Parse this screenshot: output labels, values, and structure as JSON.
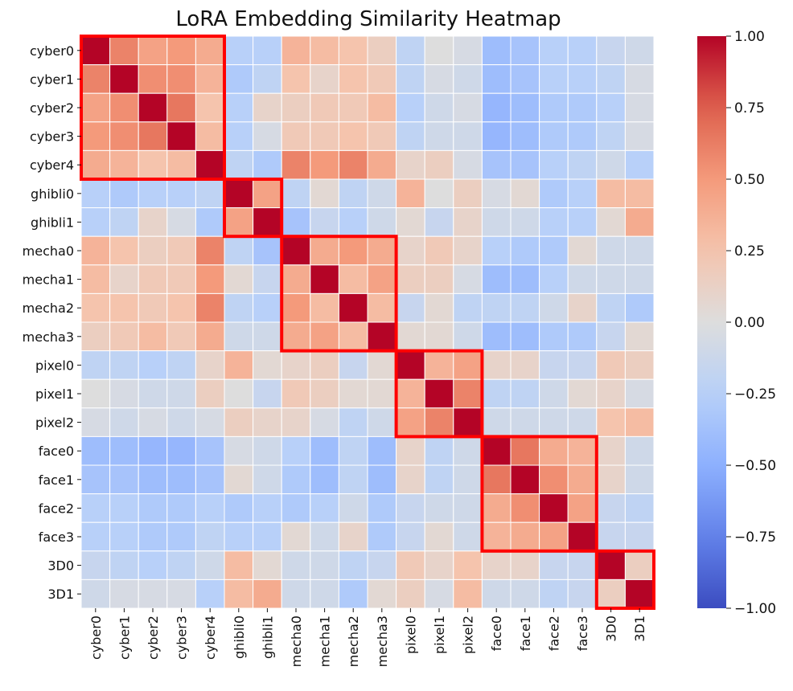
{
  "chart_data": {
    "type": "heatmap",
    "title": "LoRA Embedding Similarity Heatmap",
    "xlabel": "",
    "ylabel": "",
    "categories": [
      "cyber0",
      "cyber1",
      "cyber2",
      "cyber3",
      "cyber4",
      "ghibli0",
      "ghibli1",
      "mecha0",
      "mecha1",
      "mecha2",
      "mecha3",
      "pixel0",
      "pixel1",
      "pixel2",
      "face0",
      "face1",
      "face2",
      "face3",
      "3D0",
      "3D1"
    ],
    "values": [
      [
        1.0,
        0.6,
        0.45,
        0.5,
        0.4,
        -0.25,
        -0.25,
        0.35,
        0.3,
        0.25,
        0.15,
        -0.2,
        0.0,
        -0.05,
        -0.4,
        -0.35,
        -0.25,
        -0.25,
        -0.15,
        -0.1
      ],
      [
        0.6,
        1.0,
        0.55,
        0.55,
        0.35,
        -0.3,
        -0.2,
        0.25,
        0.1,
        0.25,
        0.2,
        -0.2,
        -0.05,
        -0.1,
        -0.4,
        -0.35,
        -0.25,
        -0.25,
        -0.2,
        -0.05
      ],
      [
        0.45,
        0.55,
        1.0,
        0.65,
        0.25,
        -0.25,
        0.1,
        0.15,
        0.2,
        0.2,
        0.3,
        -0.25,
        -0.1,
        -0.05,
        -0.45,
        -0.4,
        -0.3,
        -0.3,
        -0.25,
        -0.05
      ],
      [
        0.5,
        0.55,
        0.65,
        1.0,
        0.3,
        -0.25,
        -0.05,
        0.2,
        0.2,
        0.25,
        0.2,
        -0.2,
        -0.1,
        -0.1,
        -0.45,
        -0.4,
        -0.3,
        -0.3,
        -0.2,
        -0.05
      ],
      [
        0.4,
        0.35,
        0.25,
        0.3,
        1.0,
        -0.2,
        -0.3,
        0.6,
        0.5,
        0.6,
        0.4,
        0.1,
        0.15,
        -0.05,
        -0.35,
        -0.35,
        -0.25,
        -0.2,
        -0.1,
        -0.25
      ],
      [
        -0.25,
        -0.3,
        -0.25,
        -0.25,
        -0.2,
        1.0,
        0.45,
        -0.2,
        0.05,
        -0.2,
        -0.1,
        0.35,
        0.0,
        0.15,
        -0.05,
        0.05,
        -0.3,
        -0.25,
        0.3,
        0.3
      ],
      [
        -0.25,
        -0.2,
        0.1,
        -0.05,
        -0.3,
        0.45,
        1.0,
        -0.35,
        -0.15,
        -0.25,
        -0.1,
        0.05,
        -0.15,
        0.1,
        -0.1,
        -0.1,
        -0.25,
        -0.25,
        0.05,
        0.4
      ],
      [
        0.35,
        0.25,
        0.15,
        0.2,
        0.6,
        -0.2,
        -0.35,
        1.0,
        0.4,
        0.5,
        0.4,
        0.1,
        0.2,
        0.1,
        -0.25,
        -0.3,
        -0.3,
        0.05,
        -0.1,
        -0.1
      ],
      [
        0.3,
        0.1,
        0.2,
        0.2,
        0.5,
        0.05,
        -0.15,
        0.4,
        1.0,
        0.3,
        0.45,
        0.15,
        0.15,
        -0.05,
        -0.4,
        -0.4,
        -0.25,
        -0.1,
        -0.1,
        -0.1
      ],
      [
        0.25,
        0.25,
        0.2,
        0.25,
        0.6,
        -0.2,
        -0.25,
        0.5,
        0.3,
        1.0,
        0.3,
        -0.15,
        0.05,
        -0.2,
        -0.2,
        -0.2,
        -0.1,
        0.1,
        -0.2,
        -0.3
      ],
      [
        0.15,
        0.2,
        0.3,
        0.2,
        0.4,
        -0.1,
        -0.1,
        0.4,
        0.45,
        0.3,
        1.0,
        0.05,
        0.05,
        -0.1,
        -0.4,
        -0.4,
        -0.3,
        -0.3,
        -0.15,
        0.05
      ],
      [
        -0.2,
        -0.2,
        -0.25,
        -0.2,
        0.1,
        0.35,
        0.05,
        0.1,
        0.15,
        -0.15,
        0.05,
        1.0,
        0.35,
        0.45,
        0.1,
        0.1,
        -0.15,
        -0.15,
        0.2,
        0.15
      ],
      [
        0.0,
        -0.05,
        -0.1,
        -0.1,
        0.15,
        0.0,
        -0.15,
        0.2,
        0.15,
        0.05,
        0.05,
        0.35,
        1.0,
        0.6,
        -0.2,
        -0.2,
        -0.1,
        0.05,
        0.1,
        -0.05
      ],
      [
        -0.05,
        -0.1,
        -0.05,
        -0.1,
        -0.05,
        0.15,
        0.1,
        0.1,
        -0.05,
        -0.2,
        -0.1,
        0.45,
        0.6,
        1.0,
        -0.1,
        -0.1,
        -0.1,
        -0.1,
        0.25,
        0.3
      ],
      [
        -0.4,
        -0.4,
        -0.45,
        -0.45,
        -0.35,
        -0.05,
        -0.1,
        -0.25,
        -0.4,
        -0.2,
        -0.4,
        0.1,
        -0.2,
        -0.1,
        1.0,
        0.65,
        0.4,
        0.35,
        0.1,
        -0.1
      ],
      [
        -0.35,
        -0.35,
        -0.4,
        -0.4,
        -0.35,
        0.05,
        -0.1,
        -0.3,
        -0.4,
        -0.2,
        -0.4,
        0.1,
        -0.2,
        -0.1,
        0.65,
        1.0,
        0.55,
        0.4,
        0.1,
        -0.1
      ],
      [
        -0.25,
        -0.25,
        -0.3,
        -0.3,
        -0.25,
        -0.3,
        -0.25,
        -0.3,
        -0.25,
        -0.1,
        -0.3,
        -0.15,
        -0.1,
        -0.1,
        0.4,
        0.55,
        1.0,
        0.45,
        -0.15,
        -0.2
      ],
      [
        -0.25,
        -0.25,
        -0.3,
        -0.3,
        -0.2,
        -0.25,
        -0.25,
        0.05,
        -0.1,
        0.1,
        -0.3,
        -0.15,
        0.05,
        -0.1,
        0.35,
        0.4,
        0.45,
        1.0,
        -0.15,
        -0.15
      ],
      [
        -0.15,
        -0.2,
        -0.25,
        -0.2,
        -0.1,
        0.3,
        0.05,
        -0.1,
        -0.1,
        -0.2,
        -0.15,
        0.2,
        0.1,
        0.25,
        0.1,
        0.1,
        -0.15,
        -0.15,
        1.0,
        0.15
      ],
      [
        -0.1,
        -0.05,
        -0.05,
        -0.05,
        -0.25,
        0.3,
        0.4,
        -0.1,
        -0.1,
        -0.3,
        0.05,
        0.15,
        -0.05,
        0.3,
        -0.1,
        -0.1,
        -0.2,
        -0.15,
        0.15,
        1.0
      ]
    ],
    "vmin": -1.0,
    "vmax": 1.0,
    "colormap": "coolwarm",
    "colorbar_ticks": [
      1.0,
      0.75,
      0.5,
      0.25,
      0.0,
      -0.25,
      -0.5,
      -0.75,
      -1.0
    ],
    "colorbar_tick_labels": [
      "1.00",
      "0.75",
      "0.50",
      "0.25",
      "0.00",
      "−0.25",
      "−0.50",
      "−0.75",
      "−1.00"
    ],
    "highlight_groups": [
      {
        "name": "cyber",
        "start": 0,
        "end": 4
      },
      {
        "name": "ghibli",
        "start": 5,
        "end": 6
      },
      {
        "name": "mecha",
        "start": 7,
        "end": 10
      },
      {
        "name": "pixel",
        "start": 11,
        "end": 13
      },
      {
        "name": "face",
        "start": 14,
        "end": 17
      },
      {
        "name": "3D",
        "start": 18,
        "end": 19
      }
    ],
    "highlight_color": "#ff0000",
    "grid": true
  }
}
